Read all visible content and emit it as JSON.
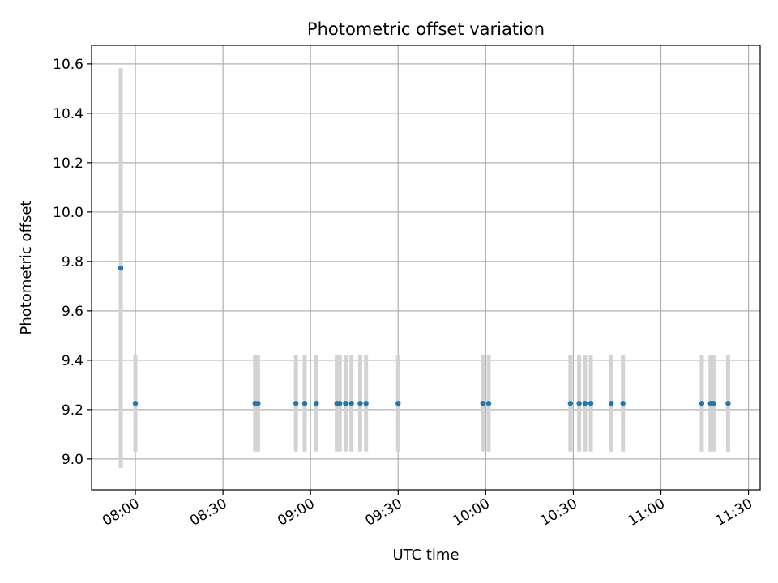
{
  "chart_data": {
    "type": "scatter",
    "title": "Photometric offset variation",
    "xlabel": "UTC time",
    "ylabel": "Photometric offset",
    "xlim": [
      "07:45",
      "11:34"
    ],
    "ylim": [
      8.875,
      10.675
    ],
    "x_ticks": [
      "08:00",
      "08:30",
      "09:00",
      "09:30",
      "10:00",
      "10:30",
      "11:00",
      "11:30"
    ],
    "y_ticks": [
      "9.0",
      "9.2",
      "9.4",
      "9.6",
      "9.8",
      "10.0",
      "10.2",
      "10.4",
      "10.6"
    ],
    "grid": true,
    "colors": {
      "points": "#1f77b4",
      "error_bars": "#d3d3d3",
      "grid": "#b0b0b0"
    },
    "points": [
      {
        "x": "07:55",
        "y": 9.773,
        "yerr": 0.81
      },
      {
        "x": "08:00",
        "y": 9.225,
        "yerr": 0.195
      },
      {
        "x": "08:41",
        "y": 9.225,
        "yerr": 0.195
      },
      {
        "x": "08:42",
        "y": 9.225,
        "yerr": 0.195
      },
      {
        "x": "08:55",
        "y": 9.225,
        "yerr": 0.195
      },
      {
        "x": "08:58",
        "y": 9.225,
        "yerr": 0.195
      },
      {
        "x": "09:02",
        "y": 9.225,
        "yerr": 0.195
      },
      {
        "x": "09:09",
        "y": 9.225,
        "yerr": 0.195
      },
      {
        "x": "09:10",
        "y": 9.225,
        "yerr": 0.195
      },
      {
        "x": "09:12",
        "y": 9.225,
        "yerr": 0.195
      },
      {
        "x": "09:14",
        "y": 9.225,
        "yerr": 0.195
      },
      {
        "x": "09:17",
        "y": 9.225,
        "yerr": 0.195
      },
      {
        "x": "09:19",
        "y": 9.225,
        "yerr": 0.195
      },
      {
        "x": "09:30",
        "y": 9.225,
        "yerr": 0.195
      },
      {
        "x": "09:59",
        "y": 9.225,
        "yerr": 0.195
      },
      {
        "x": "10:01",
        "y": 9.225,
        "yerr": 0.195
      },
      {
        "x": "10:29",
        "y": 9.225,
        "yerr": 0.195
      },
      {
        "x": "10:32",
        "y": 9.225,
        "yerr": 0.195
      },
      {
        "x": "10:34",
        "y": 9.225,
        "yerr": 0.195
      },
      {
        "x": "10:36",
        "y": 9.225,
        "yerr": 0.195
      },
      {
        "x": "10:43",
        "y": 9.225,
        "yerr": 0.195
      },
      {
        "x": "10:47",
        "y": 9.225,
        "yerr": 0.195
      },
      {
        "x": "11:14",
        "y": 9.225,
        "yerr": 0.195
      },
      {
        "x": "11:17",
        "y": 9.225,
        "yerr": 0.195
      },
      {
        "x": "11:18",
        "y": 9.225,
        "yerr": 0.195
      },
      {
        "x": "11:23",
        "y": 9.225,
        "yerr": 0.195
      }
    ]
  }
}
